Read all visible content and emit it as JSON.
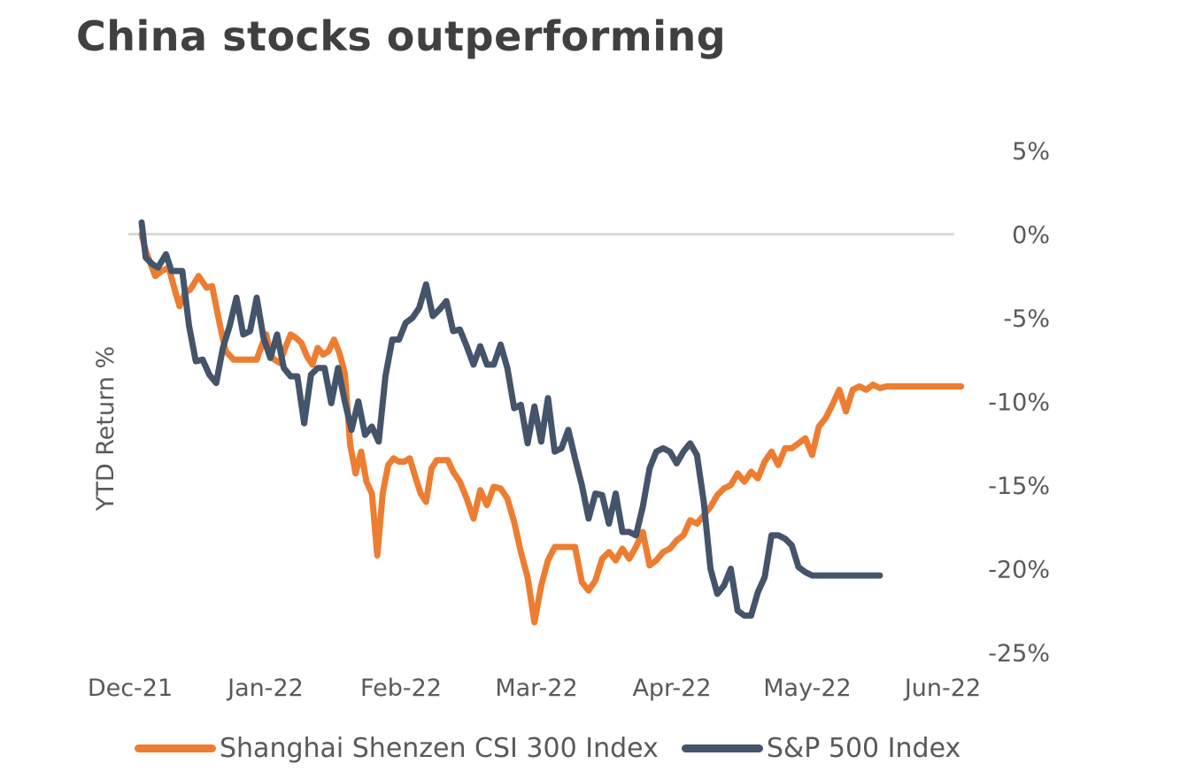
{
  "chart_data": {
    "type": "line",
    "title": "China stocks outperforming",
    "ylabel": "YTD Return %",
    "xlabel": "",
    "ylim": [
      -25,
      5
    ],
    "y_ticks": [
      5,
      0,
      -5,
      -10,
      -15,
      -20,
      -25
    ],
    "y_tick_labels": [
      "5%",
      "0%",
      "-5%",
      "-10%",
      "-15%",
      "-20%",
      "-25%"
    ],
    "x_tick_labels": [
      "Dec-21",
      "Jan-22",
      "Feb-22",
      "Mar-22",
      "Apr-22",
      "May-22",
      "Jun-22"
    ],
    "x_range": [
      "Dec-21",
      "Jun-22"
    ],
    "grid": "zero line only",
    "y_axis_side": "right",
    "legend_position": "bottom",
    "series": [
      {
        "name": "Shanghai Shenzen CSI 300 Index",
        "color": "#ED7D31",
        "x": [
          0,
          0.03,
          0.1,
          0.15,
          0.2,
          0.25,
          0.28,
          0.32,
          0.36,
          0.42,
          0.48,
          0.52,
          0.58,
          0.62,
          0.68,
          0.72,
          0.75,
          0.78,
          0.82,
          0.85,
          0.88,
          0.92,
          0.95,
          0.98,
          1.02,
          1.06,
          1.1,
          1.14,
          1.18,
          1.22,
          1.26,
          1.3,
          1.34,
          1.38,
          1.42,
          1.46,
          1.5,
          1.54,
          1.58,
          1.62,
          1.66,
          1.7,
          1.74,
          1.78,
          1.82,
          1.86,
          1.9,
          1.94,
          1.98,
          2.02,
          2.06,
          2.1,
          2.14,
          2.18,
          2.22,
          2.26,
          2.3,
          2.35,
          2.4,
          2.45,
          2.5,
          2.55,
          2.6,
          2.65,
          2.7,
          2.75,
          2.8,
          2.85,
          2.9,
          2.95,
          3.0,
          3.05,
          3.1,
          3.15,
          3.2,
          3.25,
          3.3,
          3.35,
          3.4,
          3.45,
          3.5,
          3.55,
          3.6,
          3.65,
          3.7,
          3.75,
          3.8,
          3.85,
          3.9,
          3.95,
          4.0,
          4.05,
          4.1,
          4.15,
          4.2,
          4.25,
          4.3,
          4.35,
          4.4,
          4.45,
          4.5,
          4.55,
          4.6,
          4.65,
          4.7,
          4.75,
          4.8,
          4.85,
          4.9,
          4.95,
          5.0,
          5.05,
          5.1,
          5.15,
          5.2,
          5.25,
          5.3,
          5.35,
          5.4,
          5.45,
          5.5,
          5.55,
          5.6,
          5.65,
          5.7,
          5.75,
          5.8,
          5.85,
          5.9,
          5.95,
          6.0,
          6.05
        ],
        "y": [
          0,
          -1,
          -2.5,
          -2.2,
          -2.0,
          -3.5,
          -4.3,
          -3.5,
          -3.3,
          -2.5,
          -3.2,
          -3.1,
          -5.5,
          -7.0,
          -7.5,
          -7.5,
          -7.5,
          -7.5,
          -7.5,
          -7.5,
          -6.8,
          -6.0,
          -7.2,
          -7.5,
          -7.7,
          -6.8,
          -6.0,
          -6.2,
          -6.5,
          -7.3,
          -7.8,
          -6.8,
          -7.2,
          -7.0,
          -6.3,
          -7.1,
          -8.3,
          -12.6,
          -14.3,
          -13.0,
          -14.8,
          -15.5,
          -19.2,
          -15.5,
          -13.8,
          -13.4,
          -13.6,
          -13.6,
          -13.4,
          -14.5,
          -15.5,
          -16.0,
          -14.0,
          -13.5,
          -13.5,
          -13.5,
          -14.2,
          -14.8,
          -15.8,
          -17.0,
          -15.3,
          -16.2,
          -15.1,
          -15.2,
          -15.8,
          -17.2,
          -19.0,
          -20.5,
          -23.2,
          -21.0,
          -19.5,
          -18.7,
          -18.7,
          -18.7,
          -18.7,
          -20.8,
          -21.3,
          -20.7,
          -19.4,
          -19.0,
          -19.5,
          -18.8,
          -19.4,
          -18.7,
          -17.8,
          -19.8,
          -19.5,
          -19.0,
          -18.8,
          -18.3,
          -18.0,
          -17.1,
          -17.3,
          -16.8,
          -16.3,
          -15.6,
          -15.2,
          -15.0,
          -14.3,
          -14.8,
          -14.2,
          -14.6,
          -13.6,
          -13.0,
          -13.8,
          -12.8,
          -12.8,
          -12.5,
          -12.2,
          -13.2,
          -11.5,
          -11.0,
          -10.2,
          -9.3,
          -10.6,
          -9.3,
          -9.1,
          -9.3,
          -9.0,
          -9.2,
          -9.1,
          -9.1,
          -9.1,
          -9.1,
          -9.1,
          -9.1,
          -9.1,
          -9.1,
          -9.1,
          -9.1,
          -9.1,
          -9.1
        ]
      },
      {
        "name": "S&P 500 Index",
        "color": "#44546A",
        "x": [
          0,
          0.03,
          0.08,
          0.12,
          0.18,
          0.22,
          0.25,
          0.3,
          0.35,
          0.4,
          0.45,
          0.5,
          0.55,
          0.6,
          0.65,
          0.7,
          0.75,
          0.8,
          0.85,
          0.9,
          0.95,
          1.0,
          1.05,
          1.1,
          1.15,
          1.2,
          1.25,
          1.3,
          1.35,
          1.4,
          1.45,
          1.5,
          1.55,
          1.6,
          1.65,
          1.7,
          1.75,
          1.8,
          1.85,
          1.9,
          1.95,
          2.0,
          2.05,
          2.1,
          2.15,
          2.2,
          2.25,
          2.3,
          2.35,
          2.4,
          2.45,
          2.5,
          2.55,
          2.6,
          2.65,
          2.7,
          2.75,
          2.8,
          2.85,
          2.9,
          2.95,
          3.0,
          3.05,
          3.1,
          3.15,
          3.2,
          3.25,
          3.3,
          3.35,
          3.4,
          3.45,
          3.5,
          3.55,
          3.6,
          3.65,
          3.7,
          3.75,
          3.8,
          3.85,
          3.9,
          3.95,
          4.0,
          4.05,
          4.1,
          4.15,
          4.2,
          4.25,
          4.3,
          4.35,
          4.4,
          4.45,
          4.5,
          4.55,
          4.6,
          4.65,
          4.7,
          4.75,
          4.8,
          4.85,
          4.9,
          4.95,
          5.0,
          5.05,
          5.1,
          5.15,
          5.2,
          5.25,
          5.3,
          5.35,
          5.4,
          5.45
        ],
        "y": [
          0.7,
          -1.4,
          -1.8,
          -2.0,
          -1.2,
          -2.2,
          -2.2,
          -2.2,
          -5.5,
          -7.6,
          -7.5,
          -8.4,
          -8.9,
          -6.8,
          -5.5,
          -3.8,
          -6.0,
          -5.8,
          -3.8,
          -6.2,
          -7.4,
          -6.0,
          -8.0,
          -8.5,
          -8.5,
          -11.3,
          -8.4,
          -8.0,
          -8.0,
          -10.1,
          -8.0,
          -10.0,
          -11.7,
          -10.0,
          -12.0,
          -11.5,
          -12.4,
          -8.5,
          -6.3,
          -6.3,
          -5.3,
          -5.0,
          -4.4,
          -3.0,
          -4.9,
          -4.5,
          -4.0,
          -5.8,
          -5.7,
          -6.7,
          -7.8,
          -6.7,
          -7.8,
          -7.8,
          -6.6,
          -8.0,
          -10.4,
          -10.2,
          -12.5,
          -10.3,
          -12.4,
          -9.8,
          -13.0,
          -12.8,
          -11.7,
          -13.4,
          -15.0,
          -17.0,
          -15.5,
          -15.6,
          -17.3,
          -15.5,
          -17.8,
          -17.8,
          -18.0,
          -16.3,
          -14.0,
          -13.0,
          -12.8,
          -13.0,
          -13.7,
          -13.0,
          -12.5,
          -13.2,
          -16.0,
          -20.0,
          -21.5,
          -21.0,
          -20.0,
          -22.5,
          -22.8,
          -22.8,
          -21.4,
          -20.5,
          -18.0,
          -18.0,
          -18.2,
          -18.6,
          -19.9,
          -20.2,
          -20.4,
          -20.4,
          -20.4,
          -20.4,
          -20.4,
          -20.4,
          -20.4,
          -20.4,
          -20.4,
          -20.4,
          -20.4
        ]
      }
    ]
  }
}
